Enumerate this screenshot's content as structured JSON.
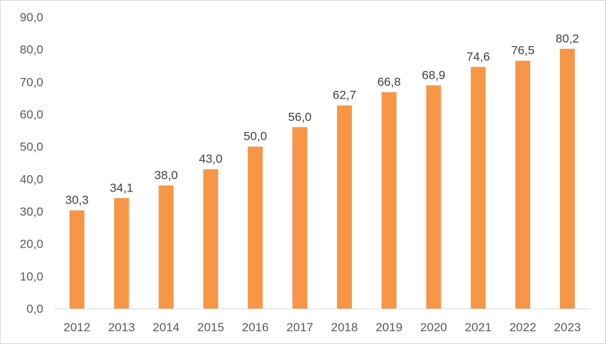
{
  "chart_data": {
    "type": "bar",
    "categories": [
      "2012",
      "2013",
      "2014",
      "2015",
      "2016",
      "2017",
      "2018",
      "2019",
      "2020",
      "2021",
      "2022",
      "2023"
    ],
    "values": [
      30.3,
      34.1,
      38.0,
      43.0,
      50.0,
      56.0,
      62.7,
      66.8,
      68.9,
      74.6,
      76.5,
      80.2
    ],
    "data_labels": [
      "30,3",
      "34,1",
      "38,0",
      "43,0",
      "50,0",
      "56,0",
      "62,7",
      "66,8",
      "68,9",
      "74,6",
      "76,5",
      "80,2"
    ],
    "y_tick_labels": [
      "0,0",
      "10,0",
      "20,0",
      "30,0",
      "40,0",
      "50,0",
      "60,0",
      "70,0",
      "80,0",
      "90,0"
    ],
    "ylim": [
      0,
      90
    ],
    "grid": false,
    "legend": "none",
    "bar_color": "#F79646",
    "axis_color": "#d9d9d9"
  }
}
